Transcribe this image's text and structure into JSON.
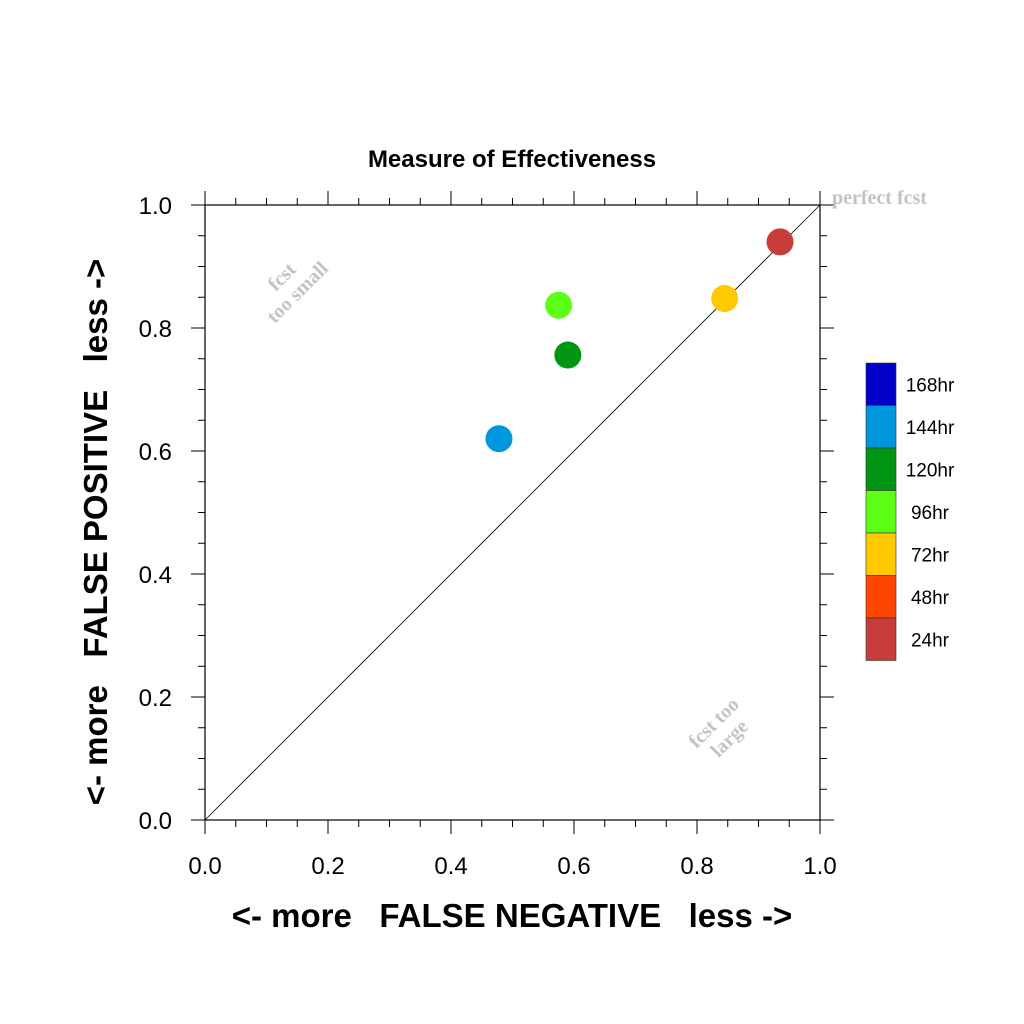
{
  "chart_data": {
    "type": "scatter",
    "title": "Measure of Effectiveness",
    "xlabel": "<- more   FALSE NEGATIVE   less ->",
    "ylabel": "<- more   FALSE POSITIVE   less ->",
    "xlim": [
      0.0,
      1.0
    ],
    "ylim": [
      0.0,
      1.0
    ],
    "xticks": [
      "0.0",
      "0.2",
      "0.4",
      "0.6",
      "0.8",
      "1.0"
    ],
    "yticks": [
      "0.0",
      "0.2",
      "0.4",
      "0.6",
      "0.8",
      "1.0"
    ],
    "grid": false,
    "reference_line": "diagonal y = x",
    "annotations": {
      "perfect": "perfect fcst",
      "small_1": "fcst",
      "small_2": "too small",
      "large_1": "fcst too",
      "large_2": "large"
    },
    "legend": {
      "placement": "right",
      "entries": [
        {
          "label": "168hr",
          "color": "#0000c8"
        },
        {
          "label": "144hr",
          "color": "#0096dc"
        },
        {
          "label": "120hr",
          "color": "#009614"
        },
        {
          "label": "96hr",
          "color": "#5aff14"
        },
        {
          "label": "72hr",
          "color": "#ffc800"
        },
        {
          "label": "48hr",
          "color": "#ff4600"
        },
        {
          "label": "24hr",
          "color": "#c83c3c"
        }
      ]
    },
    "points": [
      {
        "series": "24hr",
        "x": 0.935,
        "y": 0.94,
        "color": "#c83c3c"
      },
      {
        "series": "72hr",
        "x": 0.845,
        "y": 0.848,
        "color": "#ffc800"
      },
      {
        "series": "96hr",
        "x": 0.575,
        "y": 0.837,
        "color": "#5aff14"
      },
      {
        "series": "120hr",
        "x": 0.59,
        "y": 0.756,
        "color": "#009614"
      },
      {
        "series": "144hr",
        "x": 0.478,
        "y": 0.62,
        "color": "#0096dc"
      }
    ]
  }
}
